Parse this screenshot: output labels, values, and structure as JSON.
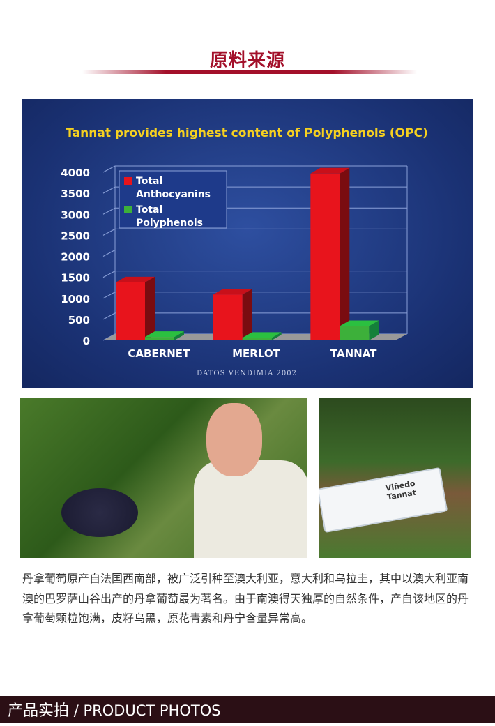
{
  "section_title": "原料来源",
  "chart_data": {
    "type": "bar",
    "title": "Tannat provides highest content of Polyphenols (OPC)",
    "categories": [
      "CABERNET",
      "MERLOT",
      "TANNAT"
    ],
    "series": [
      {
        "name": "Total Anthocyanins",
        "values": [
          1380,
          1090,
          3970
        ],
        "color": "#e8141c"
      },
      {
        "name": "Total Polyphenols",
        "values": [
          80,
          60,
          340
        ],
        "color": "#3db03a"
      }
    ],
    "yticks": [
      "0",
      "500",
      "1000",
      "1500",
      "2000",
      "2500",
      "3000",
      "3500",
      "4000"
    ],
    "ylim": [
      0,
      4000
    ],
    "grid": true,
    "legend_position": "top-left",
    "source_note": "DATOS VENDIMIA 2002",
    "legend_lines": [
      [
        "Total",
        "Anthocyanins"
      ],
      [
        "Total",
        "Polyphenols"
      ]
    ]
  },
  "photos": {
    "sign_line1": "Viñedo",
    "sign_line2": "Tannat"
  },
  "description": "丹拿葡萄原产自法国西南部，被广泛引种至澳大利亚，意大利和乌拉圭，其中以澳大利亚南澳的巴罗萨山谷出产的丹拿葡萄最为著名。由于南澳得天独厚的自然条件，产自该地区的丹拿葡萄颗粒饱满，皮籽乌黑，原花青素和丹宁含量异常高。",
  "footer": {
    "cn": "产品实拍",
    "en": " / PRODUCT PHOTOS"
  }
}
